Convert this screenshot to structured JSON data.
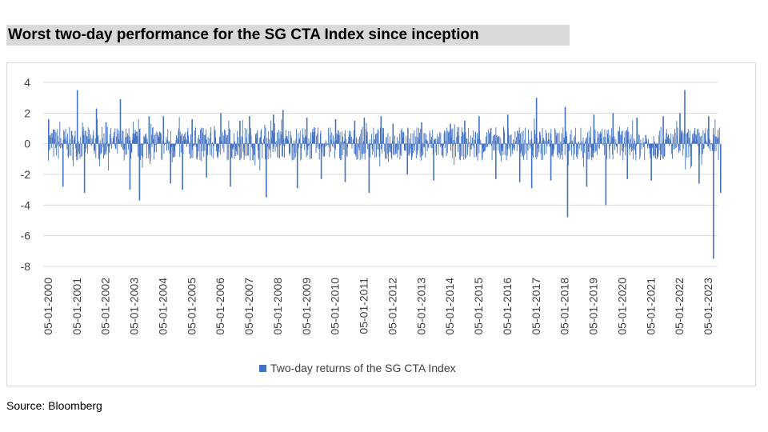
{
  "title": "Worst two-day performance for the SG CTA Index since inception",
  "source": "Source: Bloomberg",
  "colors": {
    "bar": "#4472c4",
    "grid": "#d9d9d9",
    "axis_text": "#404040"
  },
  "chart_data": {
    "type": "bar",
    "title": "",
    "xlabel": "",
    "ylabel": "",
    "ylim": [
      -8,
      4
    ],
    "yticks": [
      4,
      2,
      0,
      -2,
      -4,
      -6,
      -8
    ],
    "grid": true,
    "legend_position": "bottom",
    "x_range": [
      "05-01-2000",
      "05-01-2023"
    ],
    "x_tick_labels": [
      "05-01-2000",
      "05-01-2001",
      "05-01-2002",
      "05-01-2003",
      "05-01-2004",
      "05-01-2005",
      "05-01-2006",
      "05-01-2007",
      "05-01-2008",
      "05-01-2009",
      "05-01-2010",
      "05-01-2011",
      "05-01-2012",
      "05-01-2013",
      "05-01-2014",
      "05-01-2015",
      "05-01-2016",
      "05-01-2017",
      "05-01-2018",
      "05-01-2019",
      "05-01-2020",
      "05-01-2021",
      "05-01-2022",
      "05-01-2023"
    ],
    "series": [
      {
        "name": "Two-day returns of the SG CTA Index",
        "x": [
          "2000-01",
          "2000-07",
          "2001-01",
          "2001-04",
          "2001-09",
          "2002-01",
          "2002-07",
          "2002-11",
          "2003-03",
          "2003-07",
          "2004-01",
          "2004-04",
          "2004-09",
          "2005-01",
          "2005-07",
          "2006-01",
          "2006-05",
          "2006-09",
          "2007-01",
          "2007-08",
          "2007-11",
          "2008-03",
          "2008-09",
          "2009-01",
          "2009-07",
          "2010-01",
          "2010-05",
          "2010-09",
          "2011-01",
          "2011-03",
          "2011-08",
          "2012-01",
          "2012-07",
          "2013-01",
          "2013-06",
          "2014-01",
          "2014-07",
          "2015-01",
          "2015-08",
          "2016-01",
          "2016-06",
          "2016-11",
          "2017-01",
          "2017-07",
          "2018-01",
          "2018-02",
          "2018-10",
          "2019-01",
          "2019-06",
          "2019-09",
          "2020-03",
          "2020-07",
          "2021-01",
          "2021-06",
          "2022-01",
          "2022-03",
          "2022-09",
          "2023-01",
          "2023-03",
          "2023-06"
        ],
        "values": [
          1.6,
          -2.8,
          3.5,
          -3.2,
          2.3,
          1.4,
          2.9,
          -3.0,
          -3.7,
          1.8,
          1.8,
          -2.6,
          -3.0,
          1.6,
          -2.2,
          2.0,
          -2.8,
          1.5,
          1.8,
          -3.5,
          1.9,
          2.2,
          -2.9,
          1.7,
          -2.3,
          1.6,
          -2.5,
          1.5,
          1.7,
          -3.2,
          1.8,
          1.3,
          -2.0,
          1.4,
          -2.4,
          1.3,
          1.5,
          1.8,
          -2.3,
          1.9,
          -2.5,
          -2.9,
          3.0,
          -2.4,
          2.4,
          -4.8,
          -2.8,
          1.9,
          -4.0,
          2.0,
          -2.3,
          1.7,
          -2.4,
          1.8,
          2.0,
          3.5,
          -2.6,
          1.8,
          -7.5,
          -3.2
        ]
      }
    ]
  }
}
